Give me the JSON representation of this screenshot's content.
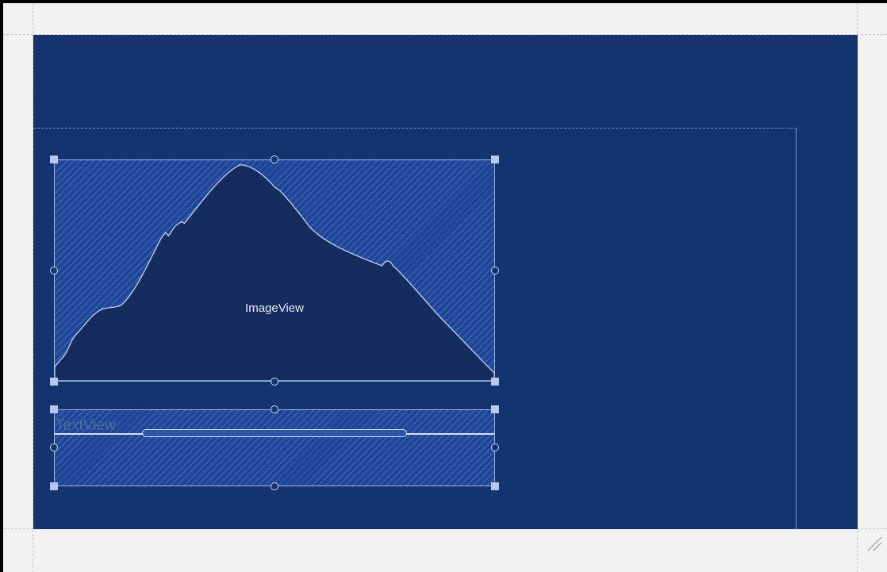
{
  "design_surface": {
    "colors": {
      "frame_background": "#f2f2f2",
      "blueprint_background": "#14346f",
      "widget_fill": "#1e4596",
      "widget_border": "#9fb6e6",
      "mountain_fill": "#142d5e"
    },
    "widgets": {
      "image_view": {
        "label": "ImageView"
      },
      "text_view": {
        "label": "TextView"
      }
    },
    "icons": {
      "resize_grip": "resize-grip-icon",
      "placeholder_image": "mountain-placeholder-icon"
    }
  }
}
